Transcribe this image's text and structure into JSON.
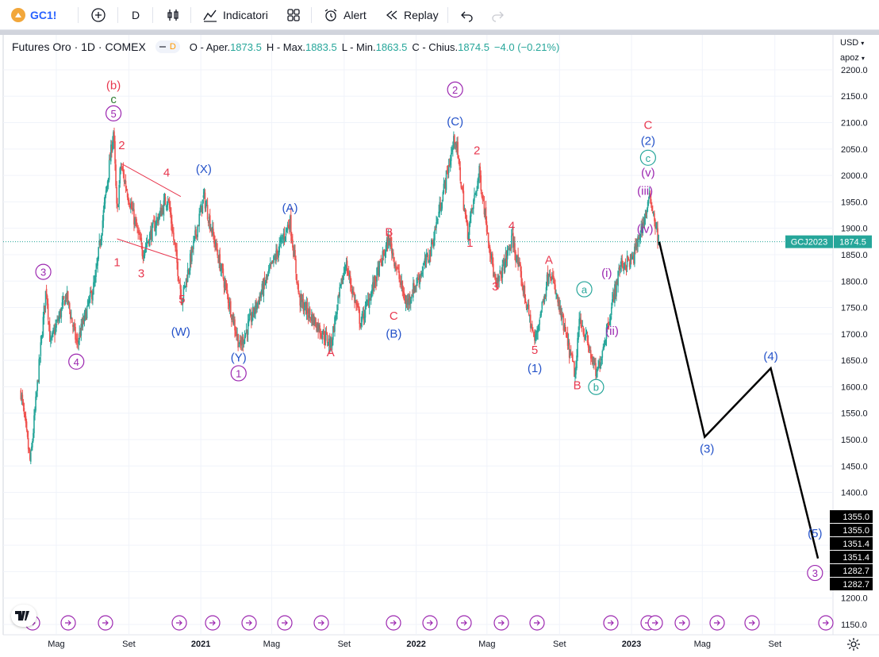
{
  "toolbar": {
    "symbol": "GC1!",
    "interval": "D",
    "indicators": "Indicatori",
    "alert": "Alert",
    "replay": "Replay"
  },
  "legend": {
    "title": "Futures Oro · 1D · COMEX",
    "badge": "D",
    "o_label": "O - Aper.",
    "o": "1873.5",
    "h_label": "H - Max.",
    "h": "1883.5",
    "l_label": "L - Min.",
    "l": "1863.5",
    "c_label": "C - Chius.",
    "c": "1874.5",
    "change": "−4.0 (−0.21%)"
  },
  "scale": {
    "currency": "USD",
    "mode": "apoz"
  },
  "colors": {
    "red": "#e8384f",
    "blue": "#2452c9",
    "purple": "#9c27b0",
    "teal": "#26a69a",
    "green": "#2e7d32",
    "up": "#26a69a",
    "down": "#ef5350"
  },
  "price_tag": {
    "symbol": "GCJ2023",
    "value": "1874.5"
  },
  "chart_data": {
    "type": "candlestick",
    "instrument": "Futures Oro · 1D · COMEX",
    "ylim": [
      1150,
      2210
    ],
    "y_ticks": [
      1150,
      1200,
      1250,
      1300,
      1350,
      1400,
      1450,
      1500,
      1550,
      1600,
      1650,
      1700,
      1750,
      1800,
      1850,
      1900,
      1950,
      2000,
      2050,
      2100,
      2150,
      2200
    ],
    "x_ticks": [
      "Mag",
      "Set",
      "2021",
      "Mag",
      "Set",
      "2022",
      "Mag",
      "Set",
      "2023",
      "Mag",
      "Set"
    ],
    "x_tick_dates": [
      "2020-05",
      "2020-09",
      "2021-01",
      "2021-05",
      "2021-09",
      "2022-01",
      "2022-05",
      "2022-09",
      "2023-01",
      "2023-05",
      "2023-09"
    ],
    "price_path": [
      [
        "2020-03-02",
        1590
      ],
      [
        "2020-03-18",
        1455
      ],
      [
        "2020-04-14",
        1790
      ],
      [
        "2020-04-21",
        1680
      ],
      [
        "2020-05-18",
        1775
      ],
      [
        "2020-06-05",
        1680
      ],
      [
        "2020-07-06",
        1800
      ],
      [
        "2020-08-06",
        2085
      ],
      [
        "2020-08-12",
        1920
      ],
      [
        "2020-08-18",
        2020
      ],
      [
        "2020-09-24",
        1855
      ],
      [
        "2020-11-06",
        1960
      ],
      [
        "2020-11-30",
        1765
      ],
      [
        "2021-01-06",
        1960
      ],
      [
        "2021-03-08",
        1675
      ],
      [
        "2021-06-01",
        1915
      ],
      [
        "2021-06-17",
        1765
      ],
      [
        "2021-08-09",
        1680
      ],
      [
        "2021-09-03",
        1835
      ],
      [
        "2021-09-29",
        1720
      ],
      [
        "2021-11-16",
        1880
      ],
      [
        "2021-12-15",
        1755
      ],
      [
        "2022-01-25",
        1855
      ],
      [
        "2022-03-08",
        2075
      ],
      [
        "2022-03-29",
        1890
      ],
      [
        "2022-04-18",
        2005
      ],
      [
        "2022-05-16",
        1785
      ],
      [
        "2022-06-13",
        1880
      ],
      [
        "2022-07-21",
        1685
      ],
      [
        "2022-08-15",
        1825
      ],
      [
        "2022-09-28",
        1620
      ],
      [
        "2022-10-05",
        1735
      ],
      [
        "2022-11-03",
        1620
      ],
      [
        "2022-12-13",
        1830
      ],
      [
        "2023-01-03",
        1840
      ],
      [
        "2023-02-02",
        1960
      ],
      [
        "2023-02-16",
        1874.5
      ]
    ],
    "projection": [
      [
        "2023-02-17",
        1874.5
      ],
      [
        "2023-05-05",
        1505
      ],
      [
        "2023-08-25",
        1635
      ],
      [
        "2023-11-13",
        1275
      ]
    ],
    "current_price": 1874.5,
    "axis_labels": [
      "1355.0",
      "1355.0",
      "1351.4",
      "1351.4",
      "1282.7",
      "1282.7"
    ],
    "wave_labels": [
      {
        "text": "(b)",
        "date": "2020-08-06",
        "price": 2163,
        "color": "red"
      },
      {
        "text": "c",
        "date": "2020-08-06",
        "price": 2137,
        "color": "green"
      },
      {
        "text": "5",
        "date": "2020-08-06",
        "price": 2110,
        "color": "purple",
        "circle": true
      },
      {
        "text": "2",
        "date": "2020-08-20",
        "price": 2050,
        "color": "red"
      },
      {
        "text": "4",
        "date": "2020-11-04",
        "price": 1998,
        "color": "red"
      },
      {
        "text": "(X)",
        "date": "2021-01-06",
        "price": 2005,
        "color": "blue"
      },
      {
        "text": "1",
        "date": "2020-08-12",
        "price": 1828,
        "color": "red"
      },
      {
        "text": "3",
        "date": "2020-09-22",
        "price": 1807,
        "color": "red"
      },
      {
        "text": "5",
        "date": "2020-11-30",
        "price": 1758,
        "color": "red"
      },
      {
        "text": "(W)",
        "date": "2020-11-28",
        "price": 1697,
        "color": "blue"
      },
      {
        "text": "3",
        "date": "2020-04-09",
        "price": 1810,
        "color": "purple",
        "circle": true
      },
      {
        "text": "4",
        "date": "2020-06-04",
        "price": 1640,
        "color": "purple",
        "circle": true
      },
      {
        "text": "(Y)",
        "date": "2021-03-06",
        "price": 1648,
        "color": "blue"
      },
      {
        "text": "1",
        "date": "2021-03-06",
        "price": 1618,
        "color": "purple",
        "circle": true
      },
      {
        "text": "(A)",
        "date": "2021-06-01",
        "price": 1931,
        "color": "blue"
      },
      {
        "text": "A",
        "date": "2021-08-09",
        "price": 1658,
        "color": "red"
      },
      {
        "text": "B",
        "date": "2021-11-16",
        "price": 1885,
        "color": "red"
      },
      {
        "text": "C",
        "date": "2021-11-24",
        "price": 1727,
        "color": "red"
      },
      {
        "text": "(B)",
        "date": "2021-11-24",
        "price": 1693,
        "color": "blue"
      },
      {
        "text": "2",
        "date": "2022-03-08",
        "price": 2155,
        "color": "purple",
        "circle": true
      },
      {
        "text": "(C)",
        "date": "2022-03-08",
        "price": 2095,
        "color": "blue"
      },
      {
        "text": "2",
        "date": "2022-04-14",
        "price": 2040,
        "color": "red"
      },
      {
        "text": "1",
        "date": "2022-04-02",
        "price": 1865,
        "color": "red"
      },
      {
        "text": "4",
        "date": "2022-06-12",
        "price": 1897,
        "color": "red"
      },
      {
        "text": "3",
        "date": "2022-05-15",
        "price": 1782,
        "color": "red"
      },
      {
        "text": "A",
        "date": "2022-08-14",
        "price": 1833,
        "color": "red"
      },
      {
        "text": "5",
        "date": "2022-07-21",
        "price": 1662,
        "color": "red"
      },
      {
        "text": "(1)",
        "date": "2022-07-21",
        "price": 1628,
        "color": "blue"
      },
      {
        "text": "B",
        "date": "2022-10-01",
        "price": 1595,
        "color": "red"
      },
      {
        "text": "a",
        "date": "2022-10-13",
        "price": 1777,
        "color": "teal",
        "circle": true
      },
      {
        "text": "b",
        "date": "2022-11-02",
        "price": 1592,
        "color": "teal",
        "circle": true
      },
      {
        "text": "(i)",
        "date": "2022-11-20",
        "price": 1808,
        "color": "purple"
      },
      {
        "text": "(ii)",
        "date": "2022-11-29",
        "price": 1698,
        "color": "purple"
      },
      {
        "text": "C",
        "date": "2023-01-29",
        "price": 2088,
        "color": "red"
      },
      {
        "text": "(2)",
        "date": "2023-01-29",
        "price": 2058,
        "color": "blue"
      },
      {
        "text": "c",
        "date": "2023-01-29",
        "price": 2026,
        "color": "teal",
        "circle": true
      },
      {
        "text": "(v)",
        "date": "2023-01-29",
        "price": 1998,
        "color": "purple"
      },
      {
        "text": "(iii)",
        "date": "2023-01-24",
        "price": 1963,
        "color": "purple"
      },
      {
        "text": "(iv)",
        "date": "2023-01-24",
        "price": 1891,
        "color": "purple"
      },
      {
        "text": "(3)",
        "date": "2023-05-09",
        "price": 1475,
        "color": "blue"
      },
      {
        "text": "(4)",
        "date": "2023-08-25",
        "price": 1650,
        "color": "blue"
      },
      {
        "text": "(5)",
        "date": "2023-11-08",
        "price": 1315,
        "color": "blue"
      },
      {
        "text": "3",
        "date": "2023-11-08",
        "price": 1240,
        "color": "purple",
        "circle": true
      }
    ]
  }
}
